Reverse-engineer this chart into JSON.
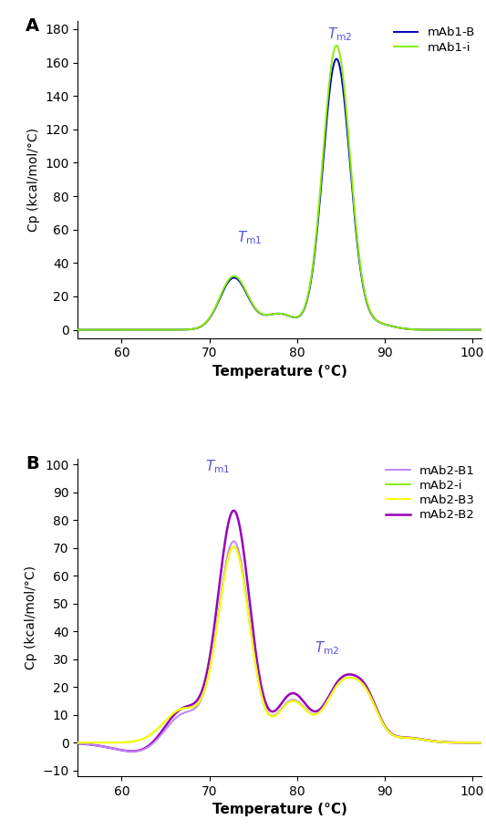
{
  "panel_A": {
    "title_label": "A",
    "xlim": [
      55,
      101
    ],
    "ylim": [
      -5,
      185
    ],
    "xticks": [
      60,
      70,
      80,
      90,
      100
    ],
    "yticks": [
      0,
      20,
      40,
      60,
      80,
      100,
      120,
      140,
      160,
      180
    ],
    "xlabel": "Temperature (°C)",
    "ylabel": "Cp (kcal/mol/°C)",
    "tm1_x": 73.2,
    "tm1_y": 50,
    "tm2_x": 83.5,
    "tm2_y": 172,
    "color_i": "#88ee00",
    "color_b": "#0000bb",
    "label_i": "mAb1-i",
    "label_b": "mAb1-B"
  },
  "panel_B": {
    "title_label": "B",
    "xlim": [
      55,
      101
    ],
    "ylim": [
      -12,
      102
    ],
    "xticks": [
      60,
      70,
      80,
      90,
      100
    ],
    "yticks": [
      -10,
      0,
      10,
      20,
      30,
      40,
      50,
      60,
      70,
      80,
      90,
      100
    ],
    "xlabel": "Temperature (°C)",
    "ylabel": "Cp (kcal/mol/°C)",
    "tm1_x": 69.5,
    "tm1_y": 96,
    "tm2_x": 82.0,
    "tm2_y": 31,
    "color_i": "#88ee00",
    "color_b1": "#bb88ff",
    "color_b2": "#9900bb",
    "color_b3": "#ffff00",
    "label_i": "mAb2-i",
    "label_b1": "mAb2-B1",
    "label_b2": "mAb2-B2",
    "label_b3": "mAb2-B3"
  }
}
